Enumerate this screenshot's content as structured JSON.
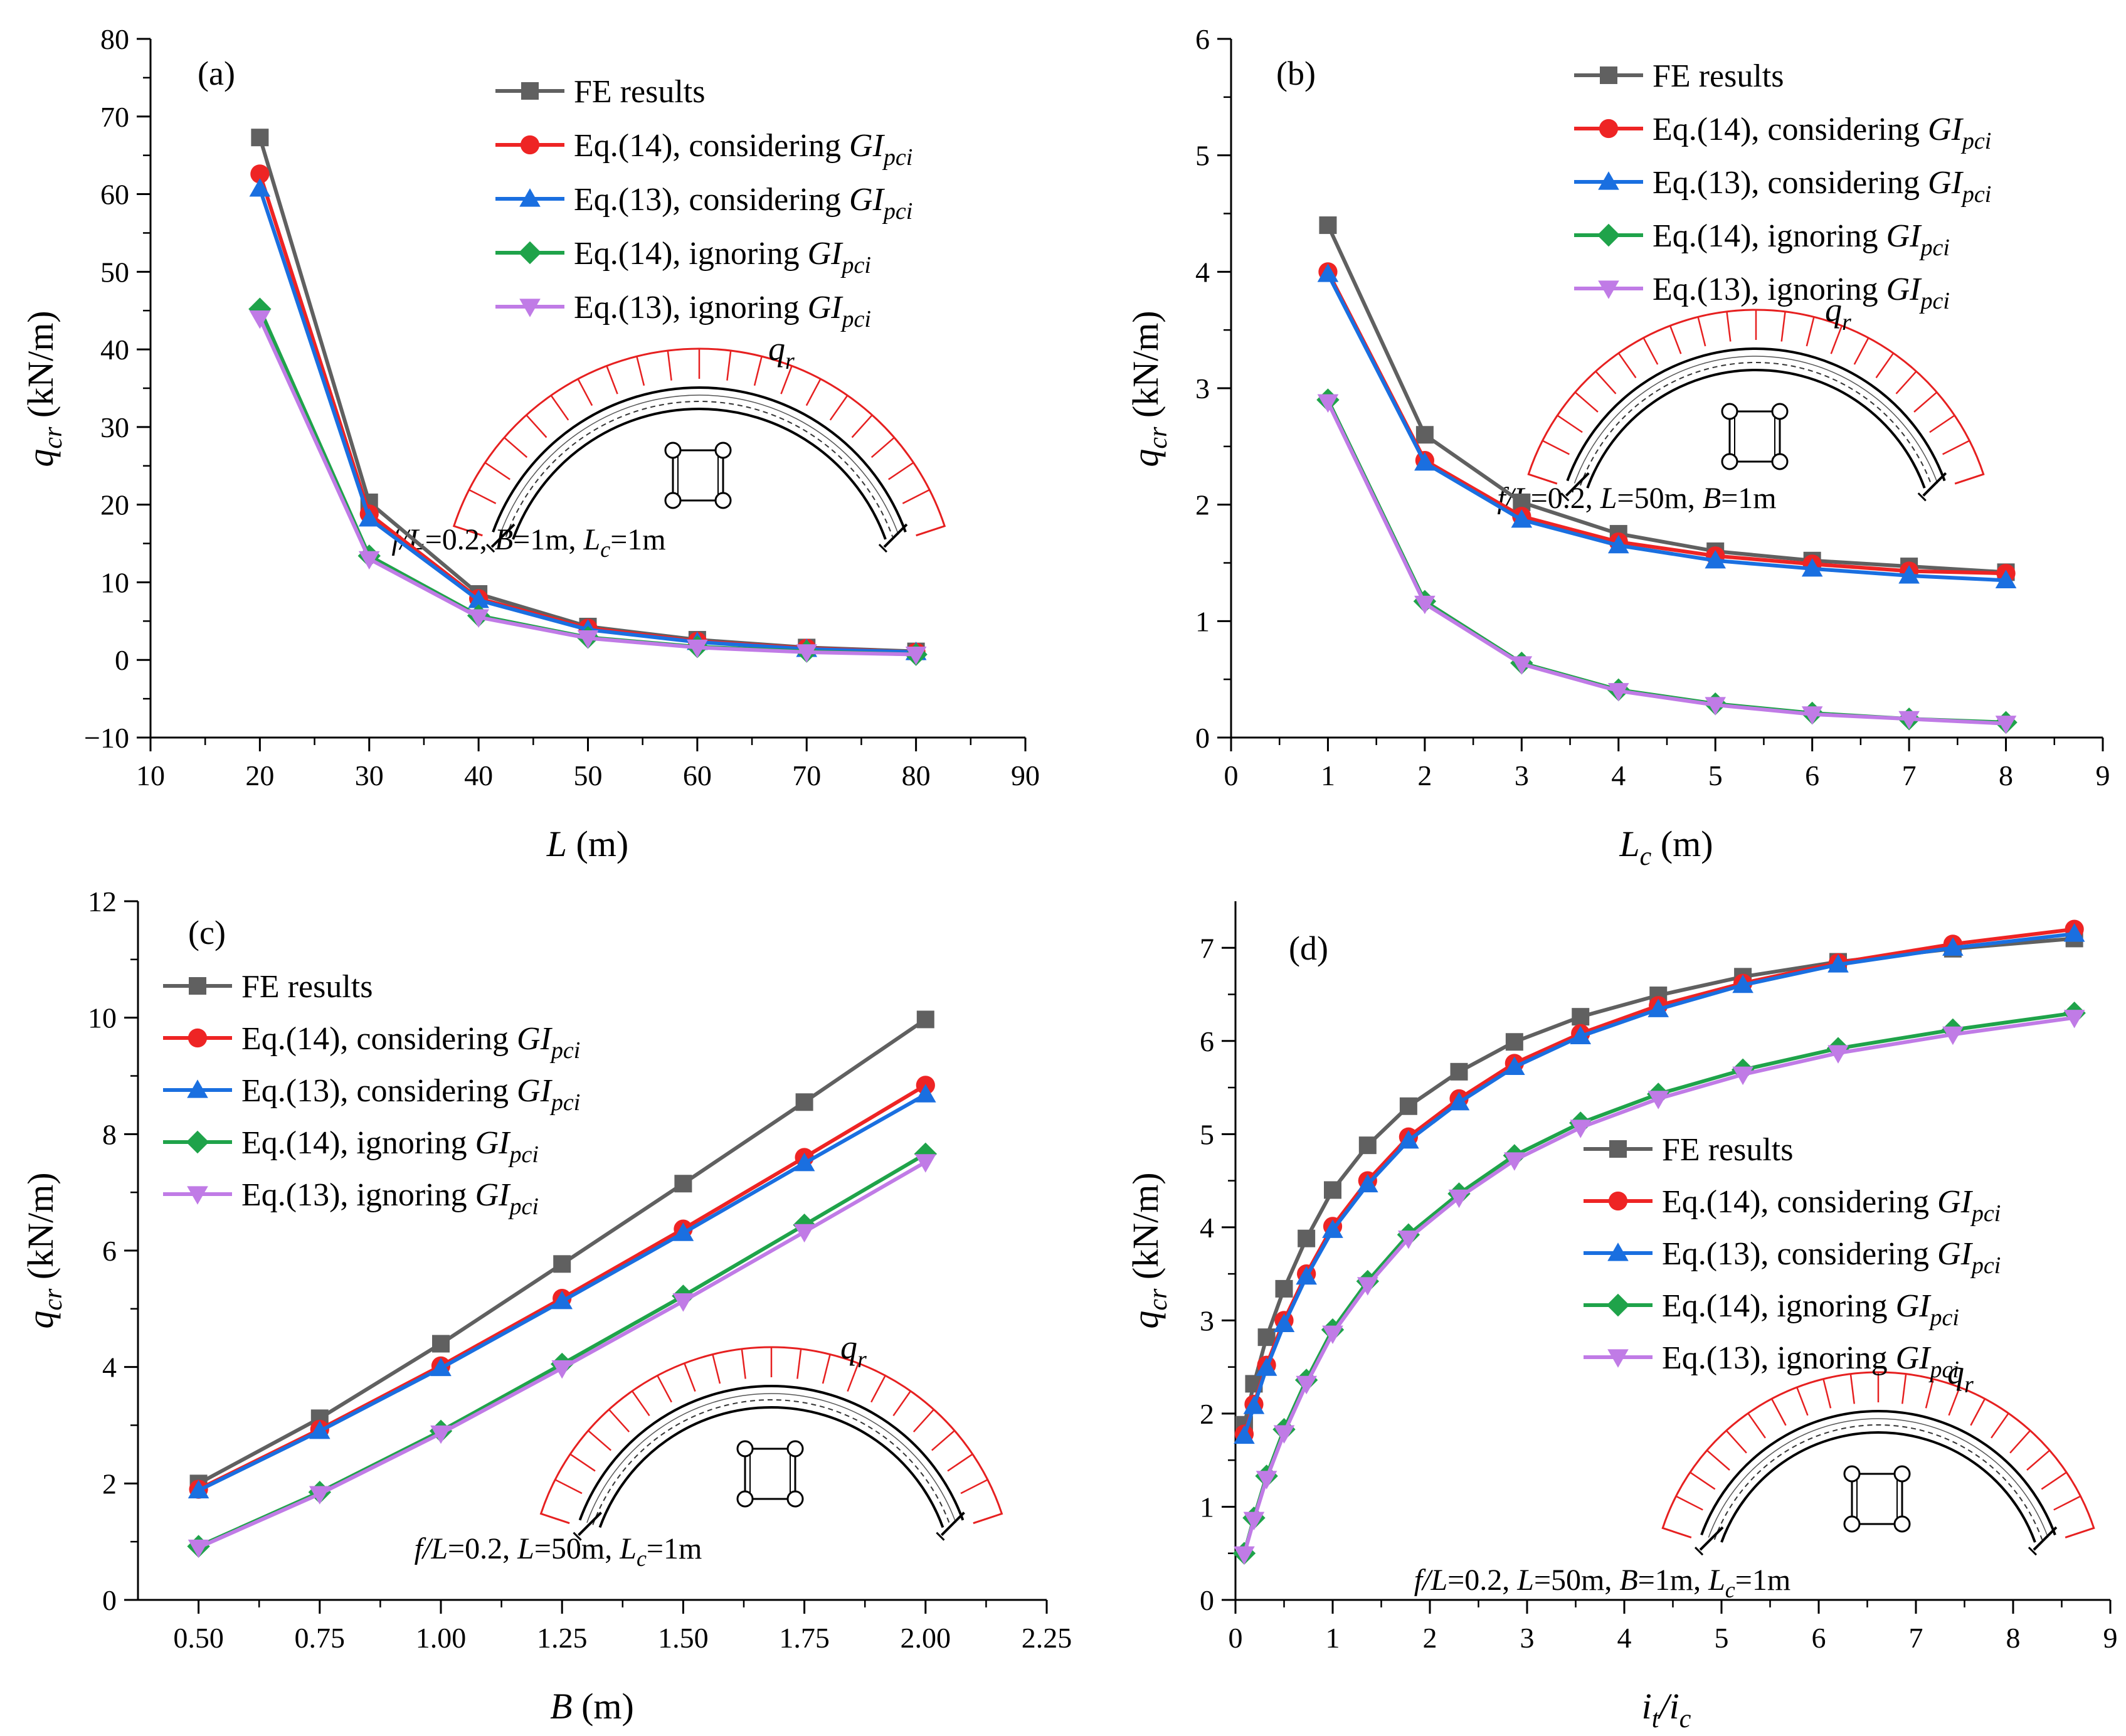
{
  "colors": {
    "FE": "#606060",
    "eq14c": "#ee2424",
    "eq13c": "#1a6fe0",
    "eq14i": "#1fa34a",
    "eq13i": "#c07be6",
    "load": "#e62020",
    "axis": "#000000"
  },
  "legend": {
    "fe": "FE results",
    "eq14c_pre": "Eq.(14), considering ",
    "eq13c_pre": "Eq.(13), considering ",
    "eq14i_pre": "Eq.(14), ignoring ",
    "eq13i_pre": "Eq.(13), ignoring ",
    "gi": "GI",
    "pci": "pci"
  },
  "diagram": {
    "load_label": "q",
    "load_sub": "r"
  },
  "ylabel": {
    "main": "q",
    "sub": "cr",
    "unit": " (kN/m)"
  },
  "chart_data": [
    {
      "type": "line",
      "panel": "(a)",
      "xlabel": {
        "main": "L",
        "sub": "",
        "unit": " (m)"
      },
      "params": [
        {
          "t": "f/L",
          "i": true
        },
        {
          "t": "=0.2, ",
          "i": false
        },
        {
          "t": "B",
          "i": true
        },
        {
          "t": "=1m, ",
          "i": false
        },
        {
          "t": "L",
          "i": true
        },
        {
          "t": "c",
          "i": false,
          "sub": true
        },
        {
          "t": "=1m",
          "i": false
        }
      ],
      "xlim": [
        10,
        90
      ],
      "xticks": [
        10,
        20,
        30,
        40,
        50,
        60,
        70,
        80,
        90
      ],
      "xtick_labels": [
        "10",
        "20",
        "30",
        "40",
        "50",
        "60",
        "70",
        "80",
        "90"
      ],
      "ylim": [
        -10,
        80
      ],
      "yticks": [
        -10,
        0,
        10,
        20,
        30,
        40,
        50,
        60,
        70,
        80
      ],
      "ytick_labels": [
        "−10",
        "0",
        "10",
        "20",
        "30",
        "40",
        "50",
        "60",
        "70",
        "80"
      ],
      "x": [
        20,
        30,
        40,
        50,
        60,
        70,
        80
      ],
      "series": [
        {
          "name": "FE results",
          "values": [
            67.3,
            20.3,
            8.5,
            4.3,
            2.6,
            1.6,
            1.1
          ]
        },
        {
          "name": "Eq.(14), considering GIpci",
          "values": [
            62.6,
            18.8,
            7.9,
            4.1,
            2.4,
            1.5,
            1.0
          ]
        },
        {
          "name": "Eq.(13), considering GIpci",
          "values": [
            60.7,
            18.2,
            7.7,
            3.9,
            2.3,
            1.4,
            1.0
          ]
        },
        {
          "name": "Eq.(14), ignoring GIpci",
          "values": [
            45.2,
            13.4,
            5.7,
            2.9,
            1.7,
            1.1,
            0.7
          ]
        },
        {
          "name": "Eq.(13), ignoring GIpci",
          "values": [
            44.0,
            13.0,
            5.5,
            2.8,
            1.6,
            1.0,
            0.7
          ]
        }
      ]
    },
    {
      "type": "line",
      "panel": "(b)",
      "xlabel": {
        "main": "L",
        "sub": "c",
        "unit": " (m)"
      },
      "params": [
        {
          "t": "f/L",
          "i": true
        },
        {
          "t": "=0.2, ",
          "i": false
        },
        {
          "t": "L",
          "i": true
        },
        {
          "t": "=50m, ",
          "i": false
        },
        {
          "t": "B",
          "i": true
        },
        {
          "t": "=1m",
          "i": false
        }
      ],
      "xlim": [
        0,
        9
      ],
      "xticks": [
        0,
        1,
        2,
        3,
        4,
        5,
        6,
        7,
        8,
        9
      ],
      "xtick_labels": [
        "0",
        "1",
        "2",
        "3",
        "4",
        "5",
        "6",
        "7",
        "8",
        "9"
      ],
      "ylim": [
        0,
        6
      ],
      "yticks": [
        0,
        1,
        2,
        3,
        4,
        5,
        6
      ],
      "ytick_labels": [
        "0",
        "1",
        "2",
        "3",
        "4",
        "5",
        "6"
      ],
      "x": [
        1,
        2,
        3,
        4,
        5,
        6,
        7,
        8
      ],
      "series": [
        {
          "name": "FE results",
          "values": [
            4.4,
            2.6,
            2.02,
            1.75,
            1.6,
            1.52,
            1.47,
            1.42
          ]
        },
        {
          "name": "Eq.(14), considering GIpci",
          "values": [
            4.0,
            2.38,
            1.9,
            1.68,
            1.56,
            1.49,
            1.43,
            1.41
          ]
        },
        {
          "name": "Eq.(13), considering GIpci",
          "values": [
            3.98,
            2.36,
            1.87,
            1.65,
            1.52,
            1.45,
            1.39,
            1.35
          ]
        },
        {
          "name": "Eq.(14), ignoring GIpci",
          "values": [
            2.9,
            1.17,
            0.64,
            0.41,
            0.29,
            0.21,
            0.16,
            0.13
          ]
        },
        {
          "name": "Eq.(13), ignoring GIpci",
          "values": [
            2.88,
            1.15,
            0.63,
            0.4,
            0.28,
            0.2,
            0.16,
            0.12
          ]
        }
      ]
    },
    {
      "type": "line",
      "panel": "(c)",
      "xlabel": {
        "main": "B",
        "sub": "",
        "unit": " (m)"
      },
      "params": [
        {
          "t": "f/L",
          "i": true
        },
        {
          "t": "=0.2, ",
          "i": false
        },
        {
          "t": "L",
          "i": true
        },
        {
          "t": "=50m, ",
          "i": false
        },
        {
          "t": "L",
          "i": true
        },
        {
          "t": "c",
          "i": false,
          "sub": true
        },
        {
          "t": "=1m",
          "i": false
        }
      ],
      "xlim": [
        0.375,
        2.25
      ],
      "xticks": [
        0.5,
        0.75,
        1.0,
        1.25,
        1.5,
        1.75,
        2.0,
        2.25
      ],
      "xtick_labels": [
        "0.50",
        "0.75",
        "1.00",
        "1.25",
        "1.50",
        "1.75",
        "2.00",
        "2.25"
      ],
      "ylim": [
        0,
        12
      ],
      "yticks": [
        0,
        2,
        4,
        6,
        8,
        10,
        12
      ],
      "ytick_labels": [
        "0",
        "2",
        "4",
        "6",
        "8",
        "10",
        "12"
      ],
      "x": [
        0.5,
        0.75,
        1.0,
        1.25,
        1.5,
        1.75,
        2.0
      ],
      "series": [
        {
          "name": "FE results",
          "values": [
            2.0,
            3.12,
            4.4,
            5.77,
            7.15,
            8.55,
            9.97
          ]
        },
        {
          "name": "Eq.(14), considering GIpci",
          "values": [
            1.9,
            2.93,
            4.02,
            5.18,
            6.37,
            7.6,
            8.84
          ]
        },
        {
          "name": "Eq.(13), considering GIpci",
          "values": [
            1.88,
            2.9,
            3.98,
            5.13,
            6.3,
            7.5,
            8.68
          ]
        },
        {
          "name": "Eq.(14), ignoring GIpci",
          "values": [
            0.92,
            1.85,
            2.9,
            4.05,
            5.22,
            6.44,
            7.66
          ]
        },
        {
          "name": "Eq.(13), ignoring GIpci",
          "values": [
            0.9,
            1.82,
            2.86,
            3.98,
            5.13,
            6.32,
            7.52
          ]
        }
      ]
    },
    {
      "type": "line",
      "panel": "(d)",
      "xlabel": {
        "main": "i",
        "sub": "t",
        "sep": "/",
        "main2": "i",
        "sub2": "c",
        "unit": ""
      },
      "params": [
        {
          "t": "f/L",
          "i": true
        },
        {
          "t": "=0.2, ",
          "i": false
        },
        {
          "t": "L",
          "i": true
        },
        {
          "t": "=50m, ",
          "i": false
        },
        {
          "t": "B",
          "i": true
        },
        {
          "t": "=1m, ",
          "i": false
        },
        {
          "t": "L",
          "i": true
        },
        {
          "t": "c",
          "i": false,
          "sub": true
        },
        {
          "t": "=1m",
          "i": false
        }
      ],
      "xlim": [
        0,
        9
      ],
      "xticks": [
        0,
        1,
        2,
        3,
        4,
        5,
        6,
        7,
        8,
        9
      ],
      "xtick_labels": [
        "0",
        "1",
        "2",
        "3",
        "4",
        "5",
        "6",
        "7",
        "8",
        "9"
      ],
      "ylim": [
        0,
        7.5
      ],
      "yticks": [
        0,
        1,
        2,
        3,
        4,
        5,
        6,
        7
      ],
      "ytick_labels": [
        "0",
        "1",
        "2",
        "3",
        "4",
        "5",
        "6",
        "7"
      ],
      "x": [
        0.09,
        0.19,
        0.32,
        0.5,
        0.73,
        1.0,
        1.36,
        1.78,
        2.3,
        2.87,
        3.55,
        4.35,
        5.22,
        6.2,
        7.38,
        8.63
      ],
      "series": [
        {
          "name": "FE results",
          "values": [
            1.88,
            2.32,
            2.82,
            3.34,
            3.88,
            4.4,
            4.88,
            5.3,
            5.67,
            5.99,
            6.26,
            6.49,
            6.69,
            6.85,
            6.99,
            7.1
          ]
        },
        {
          "name": "Eq.(14), considering GIpci",
          "values": [
            1.78,
            2.1,
            2.52,
            3.0,
            3.5,
            4.01,
            4.5,
            4.97,
            5.38,
            5.76,
            6.08,
            6.38,
            6.62,
            6.84,
            7.04,
            7.2
          ]
        },
        {
          "name": "Eq.(13), considering GIpci",
          "values": [
            1.76,
            2.08,
            2.49,
            2.96,
            3.47,
            3.97,
            4.46,
            4.93,
            5.34,
            5.72,
            6.05,
            6.34,
            6.6,
            6.82,
            7.0,
            7.15
          ]
        },
        {
          "name": "Eq.(14), ignoring GIpci",
          "values": [
            0.5,
            0.88,
            1.33,
            1.83,
            2.36,
            2.9,
            3.42,
            3.92,
            4.36,
            4.77,
            5.12,
            5.43,
            5.69,
            5.92,
            6.12,
            6.3
          ]
        },
        {
          "name": "Eq.(13), ignoring GIpci",
          "values": [
            0.49,
            0.86,
            1.3,
            1.79,
            2.32,
            2.86,
            3.38,
            3.88,
            4.32,
            4.72,
            5.07,
            5.38,
            5.64,
            5.87,
            6.07,
            6.25
          ]
        }
      ]
    }
  ]
}
